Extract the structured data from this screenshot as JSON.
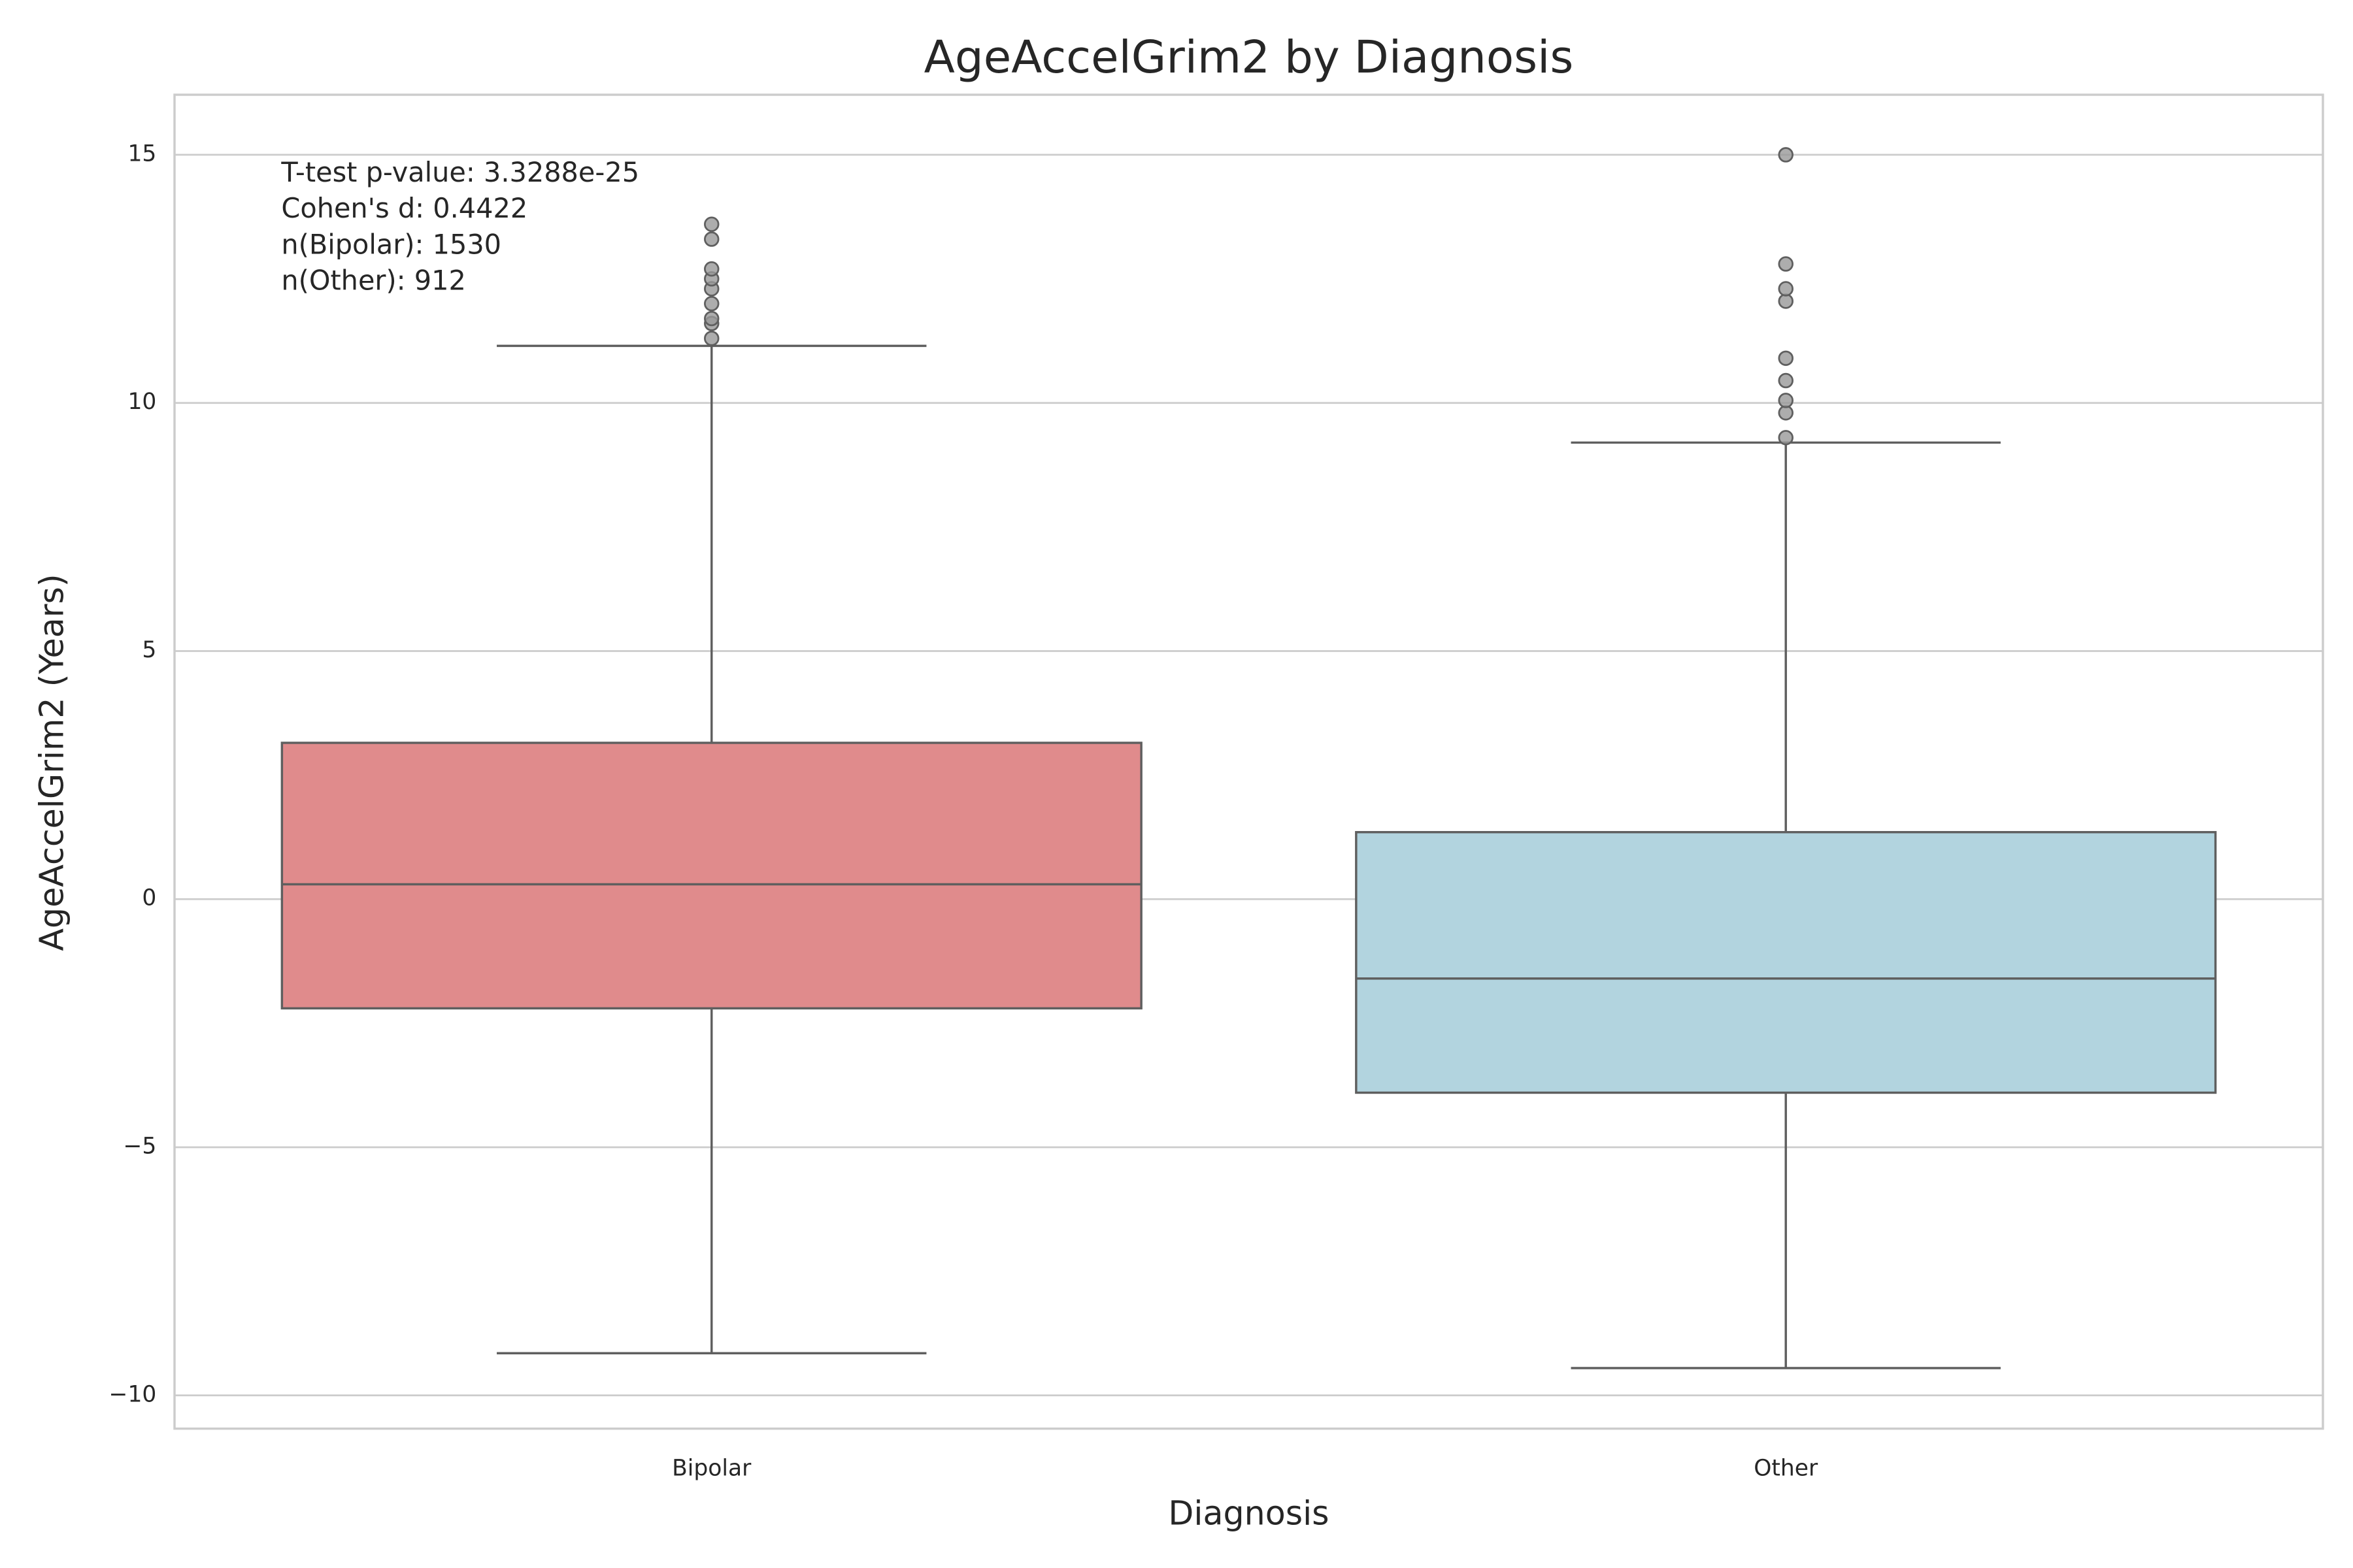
{
  "chart_data": {
    "type": "box",
    "title": "AgeAccelGrim2 by Diagnosis",
    "xlabel": "Diagnosis",
    "ylabel": "AgeAccelGrim2 (Years)",
    "annotation": [
      "T-test p-value: 3.3288e-25",
      "Cohen's d: 0.4422",
      "n(Bipolar): 1530",
      "n(Other): 912"
    ],
    "categories": [
      "Bipolar",
      "Other"
    ],
    "boxes": [
      {
        "color": "#e08b8c",
        "whislo": -9.15,
        "q1": -2.2,
        "med": 0.3,
        "q3": 3.15,
        "whishi": 11.15,
        "fliers": [
          11.3,
          11.6,
          11.7,
          12.0,
          12.3,
          12.5,
          12.7,
          13.3,
          13.6
        ]
      },
      {
        "color": "#b2d4df",
        "whislo": -9.45,
        "q1": -3.9,
        "med": -1.6,
        "q3": 1.35,
        "whishi": 9.2,
        "fliers": [
          9.3,
          9.8,
          10.05,
          10.45,
          10.9,
          12.05,
          12.3,
          12.8,
          15.0
        ]
      }
    ],
    "ylim": [
      -10.67,
      16.21
    ],
    "yticks": [
      {
        "value": -10,
        "label": "−10"
      },
      {
        "value": -5,
        "label": "−5"
      },
      0,
      5,
      10,
      15
    ],
    "grid": true
  }
}
